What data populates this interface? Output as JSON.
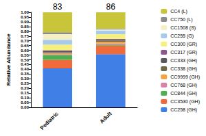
{
  "chart_data": {
    "type": "bar",
    "stacked": true,
    "y_label": "Relative Abundance",
    "categories": [
      "Pediatric",
      "Adult"
    ],
    "annotations": [
      {
        "category": "Pediatric",
        "text": "83"
      },
      {
        "category": "Adult",
        "text": "86"
      }
    ],
    "ylim": [
      0,
      1
    ],
    "yticks": [
      {
        "value": 0,
        "label": "0.00"
      },
      {
        "value": 0.05,
        "label": "0.05"
      },
      {
        "value": 0.1,
        "label": "0.10"
      },
      {
        "value": 0.15,
        "label": "0.15"
      },
      {
        "value": 0.2,
        "label": "0.20"
      },
      {
        "value": 0.25,
        "label": "0.25"
      },
      {
        "value": 0.3,
        "label": "0.30"
      },
      {
        "value": 0.35,
        "label": "0.35"
      },
      {
        "value": 0.4,
        "label": "0.40"
      },
      {
        "value": 0.45,
        "label": "0.45"
      },
      {
        "value": 0.5,
        "label": "0.50"
      },
      {
        "value": 0.55,
        "label": "0.55"
      },
      {
        "value": 0.6,
        "label": "0.60"
      },
      {
        "value": 0.65,
        "label": "0.65"
      },
      {
        "value": 0.7,
        "label": "0.70"
      },
      {
        "value": 0.75,
        "label": "0.75"
      },
      {
        "value": 0.8,
        "label": "0.80"
      },
      {
        "value": 0.85,
        "label": "0.85"
      },
      {
        "value": 0.9,
        "label": "0.90"
      },
      {
        "value": 0.95,
        "label": "0.95"
      },
      {
        "value": 1,
        "label": "1.00"
      }
    ],
    "grid": false,
    "legend": "right",
    "series": [
      {
        "name": "CC4 (L)",
        "color": "#c9c53a",
        "values": [
          0.21,
          0.17
        ]
      },
      {
        "name": "CC750 (L)",
        "color": "#8c8c8c",
        "values": [
          0.02,
          0.01
        ]
      },
      {
        "name": "CC1508 (S)",
        "color": "#f3f0c8",
        "values": [
          0.06,
          0.01
        ]
      },
      {
        "name": "CC255 (G)",
        "color": "#a9cbeb",
        "values": [
          0.05,
          0.04
        ]
      },
      {
        "name": "CC300 (GR)",
        "color": "#f6f07c",
        "values": [
          0.06,
          0.05
        ]
      },
      {
        "name": "CC317 (GR)",
        "color": "#8a5a8c",
        "values": [
          0.01,
          0.01
        ]
      },
      {
        "name": "CC333 (GH)",
        "color": "#5a5a5a",
        "values": [
          0.01,
          0.01
        ]
      },
      {
        "name": "CC338 (GH)",
        "color": "#6e6a4a",
        "values": [
          0.01,
          0.01
        ]
      },
      {
        "name": "CC9999 (GH)",
        "color": "#f5a444",
        "values": [
          0.01,
          0.02
        ]
      },
      {
        "name": "CC768 (GH)",
        "color": "#d883a6",
        "values": [
          0.01,
          0.01
        ]
      },
      {
        "name": "CC844 (GH)",
        "color": "#4caf50",
        "values": [
          0.05,
          0.01
        ]
      },
      {
        "name": "CC3530 (GH)",
        "color": "#f06a3c",
        "values": [
          0.09,
          0.09
        ]
      },
      {
        "name": "CC258 (GH)",
        "color": "#3f7fe6",
        "values": [
          0.41,
          0.56
        ]
      }
    ]
  }
}
